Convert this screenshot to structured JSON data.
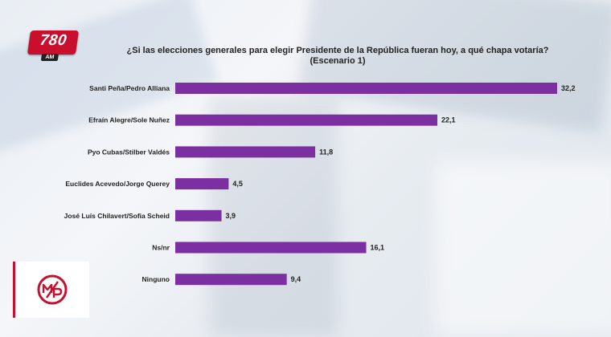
{
  "header": {
    "station_logo": {
      "number": "780",
      "band": "AM"
    },
    "title_line1": "¿Si  las elecciones  generales para elegir Presidente de la República fueran hoy, a qué chapa votaría?",
    "title_line2": "(Escenario 1)"
  },
  "footer": {
    "logo_name": "M/P logo"
  },
  "colors": {
    "bar": "#7b2fa0",
    "logo_red": "#c8102e"
  },
  "chart_data": {
    "type": "bar",
    "orientation": "horizontal",
    "categories": [
      "Santi Peña/Pedro Alliana",
      "Efraín Alegre/Sole Nuñez",
      "Pyo Cubas/Stilber Valdés",
      "Euclides Acevedo/Jorge Querey",
      "José Luís Chilavert/Sofia Scheid",
      "Ns/nr",
      "Ninguno"
    ],
    "values": [
      32.2,
      22.1,
      11.8,
      4.5,
      3.9,
      16.1,
      9.4
    ],
    "value_labels": [
      "32,2",
      "22,1",
      "11,8",
      "4,5",
      "3,9",
      "16,1",
      "9,4"
    ],
    "xlim": [
      0,
      32.2
    ],
    "grid": false,
    "legend": "none"
  }
}
